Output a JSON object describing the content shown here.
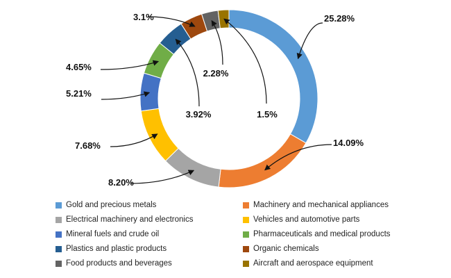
{
  "chart_data": {
    "type": "pie",
    "donut": true,
    "title": "",
    "legend_position": "bottom",
    "slices": [
      {
        "name": "Gold and precious metals",
        "value": 25.28,
        "label": "25.28%",
        "color": "#5B9BD5"
      },
      {
        "name": "Machinery and mechanical appliances",
        "value": 14.09,
        "label": "14.09%",
        "color": "#ED7D31"
      },
      {
        "name": "Electrical machinery and electronics",
        "value": 8.2,
        "label": "8.20%",
        "color": "#A5A5A5"
      },
      {
        "name": "Vehicles and automotive parts",
        "value": 7.68,
        "label": "7.68%",
        "color": "#FFC000"
      },
      {
        "name": "Mineral fuels and crude oil",
        "value": 5.21,
        "label": "5.21%",
        "color": "#4472C4"
      },
      {
        "name": "Pharmaceuticals and medical products",
        "value": 4.65,
        "label": "4.65%",
        "color": "#70AD47"
      },
      {
        "name": "Plastics and plastic products",
        "value": 3.92,
        "label": "3.92%",
        "color": "#255E91"
      },
      {
        "name": "Organic chemicals",
        "value": 3.1,
        "label": "3.1%",
        "color": "#9E480E"
      },
      {
        "name": "Food products and beverages",
        "value": 2.28,
        "label": "2.28%",
        "color": "#636363"
      },
      {
        "name": "Aircraft and aerospace equipment",
        "value": 1.5,
        "label": "1.5%",
        "color": "#997300"
      }
    ]
  }
}
